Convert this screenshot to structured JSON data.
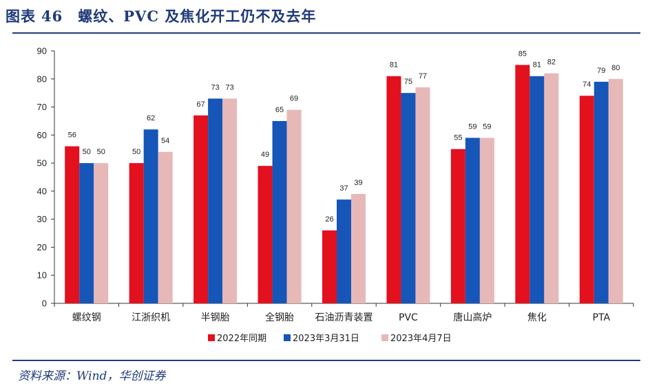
{
  "header": {
    "fig_label": "图表",
    "fig_number": "46",
    "title": "螺纹、PVC 及焦化开工仍不及去年"
  },
  "footer": {
    "source": "资料来源：Wind，华创证券"
  },
  "colors": {
    "series_1": "#e3101e",
    "series_2": "#1556b8",
    "series_3": "#e7b8b8",
    "accent": "#1f3a7a"
  },
  "chart_data": {
    "type": "bar",
    "title": "",
    "xlabel": "",
    "ylabel": "",
    "ylim": [
      0,
      90
    ],
    "yticks": [
      0,
      10,
      20,
      30,
      40,
      50,
      60,
      70,
      80,
      90
    ],
    "grid": false,
    "legend_position": "bottom",
    "categories": [
      "螺纹钢",
      "江浙织机",
      "半钢胎",
      "全钢胎",
      "石油沥青装置",
      "PVC",
      "唐山高炉",
      "焦化",
      "PTA"
    ],
    "series": [
      {
        "name": "2022年同期",
        "values": [
          56,
          50,
          67,
          49,
          26,
          81,
          55,
          85,
          74
        ],
        "labels": [
          "56",
          "50",
          "67",
          "49",
          "26",
          "81",
          "55",
          "85",
          "74"
        ]
      },
      {
        "name": "2023年3月31日",
        "values": [
          50,
          62,
          73,
          65,
          37,
          75,
          59,
          81,
          79
        ],
        "labels": [
          "50",
          "62",
          "73",
          "65",
          "37",
          "75",
          "59",
          "81",
          "79"
        ]
      },
      {
        "name": "2023年4月7日",
        "values": [
          50,
          54,
          73,
          69,
          39,
          77,
          59,
          82,
          80
        ],
        "labels": [
          "50",
          "54",
          "73",
          "69",
          "39",
          "77",
          "59",
          "82",
          "80"
        ]
      }
    ]
  }
}
